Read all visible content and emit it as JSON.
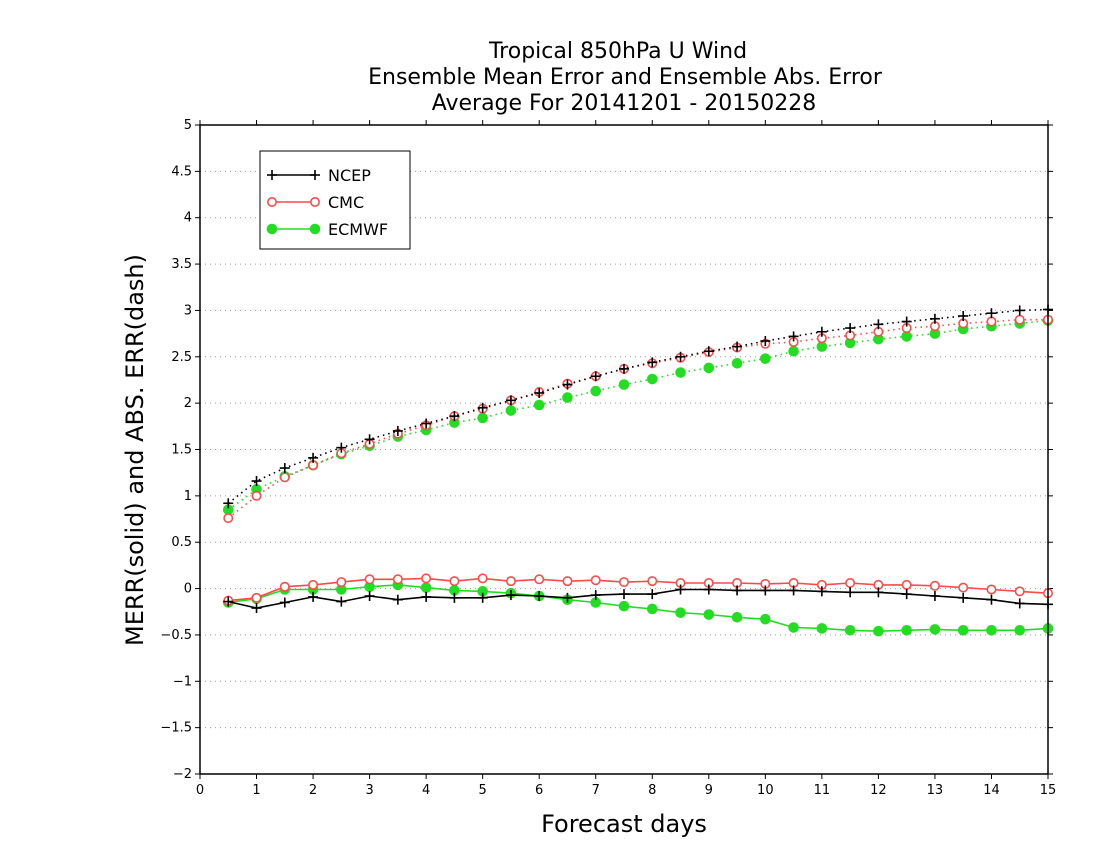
{
  "chart_data": {
    "type": "line",
    "title_lines": [
      "Tropical 850hPa U Wind",
      "Ensemble Mean Error and Ensemble Abs. Error",
      "Average For 20141201 - 20150228"
    ],
    "xlabel": "Forecast days",
    "ylabel": "MERR(solid) and ABS. ERR(dash)",
    "xlim": [
      0,
      15
    ],
    "ylim": [
      -2,
      5
    ],
    "x_ticks": [
      "0",
      "1",
      "2",
      "3",
      "4",
      "5",
      "6",
      "7",
      "8",
      "9",
      "10",
      "11",
      "12",
      "13",
      "14",
      "15"
    ],
    "y_ticks": [
      "−2",
      "−1.5",
      "−1",
      "−0.5",
      "0",
      "0.5",
      "1",
      "1.5",
      "2",
      "2.5",
      "3",
      "3.5",
      "4",
      "4.5",
      "5"
    ],
    "grid": "horizontal dotted",
    "legend_position": "top-left",
    "x": [
      0.5,
      1,
      1.5,
      2,
      2.5,
      3,
      3.5,
      4,
      4.5,
      5,
      5.5,
      6,
      6.5,
      7,
      7.5,
      8,
      8.5,
      9,
      9.5,
      10,
      10.5,
      11,
      11.5,
      12,
      12.5,
      13,
      13.5,
      14,
      14.5,
      15
    ],
    "series": [
      {
        "name": "NCEP",
        "color": "#000000",
        "marker": "plus",
        "merr": [
          -0.14,
          -0.21,
          -0.15,
          -0.09,
          -0.14,
          -0.08,
          -0.12,
          -0.09,
          -0.1,
          -0.1,
          -0.07,
          -0.08,
          -0.1,
          -0.07,
          -0.06,
          -0.06,
          -0.01,
          -0.01,
          -0.02,
          -0.02,
          -0.02,
          -0.03,
          -0.04,
          -0.04,
          -0.06,
          -0.08,
          -0.1,
          -0.12,
          -0.16,
          -0.17
        ],
        "abs_err": [
          0.92,
          1.16,
          1.3,
          1.41,
          1.52,
          1.61,
          1.7,
          1.78,
          1.86,
          1.95,
          2.03,
          2.11,
          2.2,
          2.29,
          2.37,
          2.44,
          2.5,
          2.56,
          2.61,
          2.67,
          2.72,
          2.77,
          2.81,
          2.85,
          2.88,
          2.91,
          2.94,
          2.97,
          3.0,
          3.01
        ]
      },
      {
        "name": "CMC",
        "color": "#ff4a4a",
        "marker": "open-circle",
        "merr": [
          -0.13,
          -0.1,
          0.02,
          0.04,
          0.07,
          0.1,
          0.1,
          0.11,
          0.08,
          0.11,
          0.08,
          0.1,
          0.08,
          0.09,
          0.07,
          0.08,
          0.06,
          0.06,
          0.06,
          0.05,
          0.06,
          0.04,
          0.06,
          0.04,
          0.04,
          0.03,
          0.01,
          -0.01,
          -0.03,
          -0.05
        ],
        "abs_err": [
          0.76,
          1.0,
          1.2,
          1.33,
          1.46,
          1.56,
          1.67,
          1.76,
          1.86,
          1.94,
          2.03,
          2.12,
          2.21,
          2.29,
          2.37,
          2.43,
          2.49,
          2.55,
          2.6,
          2.64,
          2.66,
          2.7,
          2.73,
          2.77,
          2.81,
          2.83,
          2.86,
          2.88,
          2.9,
          2.9
        ]
      },
      {
        "name": "ECMWF",
        "color": "#22dd22",
        "marker": "filled-circle",
        "merr": [
          -0.15,
          -0.11,
          -0.01,
          -0.01,
          -0.01,
          0.02,
          0.04,
          0.01,
          -0.02,
          -0.03,
          -0.05,
          -0.08,
          -0.12,
          -0.15,
          -0.19,
          -0.22,
          -0.26,
          -0.28,
          -0.31,
          -0.33,
          -0.42,
          -0.43,
          -0.45,
          -0.46,
          -0.45,
          -0.44,
          -0.45,
          -0.45,
          -0.45,
          -0.43
        ],
        "abs_err": [
          0.85,
          1.07,
          1.21,
          1.33,
          1.45,
          1.54,
          1.64,
          1.71,
          1.79,
          1.84,
          1.92,
          1.98,
          2.06,
          2.13,
          2.2,
          2.26,
          2.33,
          2.38,
          2.43,
          2.48,
          2.56,
          2.61,
          2.65,
          2.69,
          2.72,
          2.75,
          2.8,
          2.83,
          2.86,
          2.89
        ]
      }
    ]
  }
}
